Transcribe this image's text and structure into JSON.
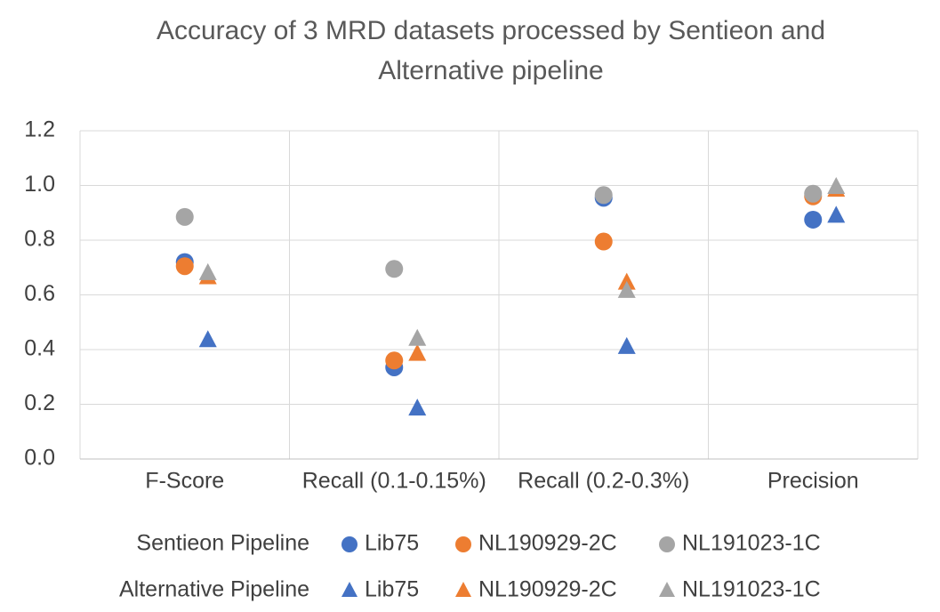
{
  "chart_data": {
    "type": "scatter",
    "title": "Accuracy of 3 MRD datasets processed by Sentieon and Alternative pipeline",
    "categories": [
      "F-Score",
      "Recall (0.1-0.15%)",
      "Recall (0.2-0.3%)",
      "Precision"
    ],
    "groups": [
      {
        "name": "Sentieon Pipeline",
        "marker": "circle",
        "series": [
          {
            "name": "Lib75",
            "color": "#4472c4",
            "values": [
              0.72,
              0.335,
              0.955,
              0.875
            ]
          },
          {
            "name": "NL190929-2C",
            "color": "#ed7d31",
            "values": [
              0.705,
              0.36,
              0.795,
              0.96
            ]
          },
          {
            "name": "NL191023-1C",
            "color": "#a5a5a5",
            "values": [
              0.885,
              0.695,
              0.965,
              0.97
            ]
          }
        ]
      },
      {
        "name": "Alternative Pipeline",
        "marker": "triangle",
        "series": [
          {
            "name": "Lib75",
            "color": "#4472c4",
            "values": [
              0.435,
              0.185,
              0.41,
              0.89
            ]
          },
          {
            "name": "NL190929-2C",
            "color": "#ed7d31",
            "values": [
              0.665,
              0.385,
              0.645,
              0.985
            ]
          },
          {
            "name": "NL191023-1C",
            "color": "#a5a5a5",
            "values": [
              0.68,
              0.44,
              0.615,
              0.995
            ]
          }
        ]
      }
    ],
    "ylim": [
      0,
      1.2
    ],
    "yticks": [
      {
        "value": 0,
        "label": "0.0"
      },
      0.2,
      0.4,
      0.6,
      0.8,
      {
        "value": 1,
        "label": "1.0"
      },
      1.2
    ],
    "grid": true
  }
}
